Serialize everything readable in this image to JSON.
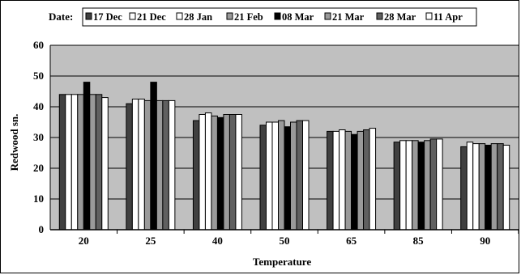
{
  "chart_data": {
    "type": "bar",
    "title": "",
    "xlabel": "Temperature",
    "ylabel": "Redwood sn.",
    "ylim": [
      0,
      60
    ],
    "yticks": [
      0,
      10,
      20,
      30,
      40,
      50,
      60
    ],
    "grid": true,
    "legend_position": "top",
    "legend_title": "Date:",
    "categories": [
      "20",
      "25",
      "40",
      "50",
      "65",
      "85",
      "90"
    ],
    "series": [
      {
        "name": "17 Dec",
        "color": "#404040",
        "values": [
          44,
          41,
          35.5,
          34,
          32,
          28.5,
          27
        ]
      },
      {
        "name": "21 Dec",
        "color": "#ffffff",
        "values": [
          44,
          42.5,
          37.5,
          35,
          32,
          29,
          28.5
        ]
      },
      {
        "name": "28 Jan",
        "color": "#ffffff",
        "values": [
          44,
          42.5,
          38,
          35,
          32.5,
          29,
          28
        ]
      },
      {
        "name": "21 Feb",
        "color": "#9a9a9a",
        "values": [
          44,
          42,
          37,
          35.5,
          32,
          29,
          28
        ]
      },
      {
        "name": "08 Mar",
        "color": "#000000",
        "values": [
          48,
          48,
          36.5,
          33.5,
          31,
          28.5,
          27.5
        ]
      },
      {
        "name": "21 Mar",
        "color": "#9a9a9a",
        "values": [
          44,
          42,
          37.5,
          35,
          32,
          29,
          28
        ]
      },
      {
        "name": "28 Mar",
        "color": "#606060",
        "values": [
          44,
          42,
          37.5,
          35.5,
          32.5,
          29.5,
          28
        ]
      },
      {
        "name": "11 Apr",
        "color": "#ffffff",
        "values": [
          43,
          42,
          37.5,
          35.5,
          33,
          29.5,
          27.5
        ]
      }
    ]
  }
}
